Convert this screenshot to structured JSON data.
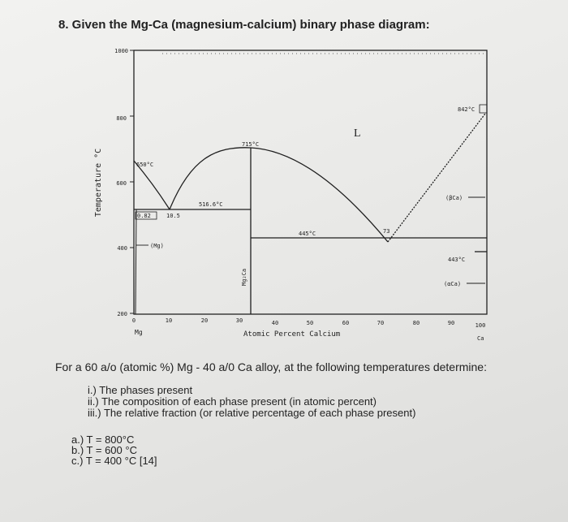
{
  "question": {
    "title": "8. Given the Mg-Ca (magnesium-calcium) binary phase diagram:",
    "prompt": "For a 60 a/o (atomic %) Mg - 40 a/0 Ca alloy, at the following temperatures determine:",
    "subparts": [
      "i.) The phases present",
      "ii.) The composition of each phase present (in atomic percent)",
      "iii.) The relative fraction (or relative percentage of each phase present)"
    ],
    "temperatures": [
      "a.) T = 800°C",
      "b.) T = 600 °C",
      "c.) T =  400 °C [14]"
    ]
  },
  "diagram": {
    "ylabel": "Temperature °C",
    "xlabel": "Atomic Percent Calcium",
    "y_ticks": [
      "1000",
      "800",
      "600",
      "400",
      "200"
    ],
    "x_ticks": [
      "0",
      "10",
      "20",
      "30",
      "40",
      "50",
      "60",
      "70",
      "80",
      "90",
      "100"
    ],
    "left_element": "Mg",
    "right_element": "Ca",
    "labels": {
      "mg_melting": "650°C",
      "eutectic1_comp": "0.82",
      "eutectic1_point": "10.5",
      "eutectic1_temp": "516.6°C",
      "compound_melting": "715°C",
      "liquid": "L",
      "eutectic2_temp": "445°C",
      "eutectic2_comp": "73",
      "ca_melting": "842°C",
      "beta_ca": "(βCa)",
      "alpha_ca": "(αCa)",
      "ca_transform": "443°C",
      "mg_phase": "(Mg)",
      "compound": "Mg₂Ca"
    }
  }
}
